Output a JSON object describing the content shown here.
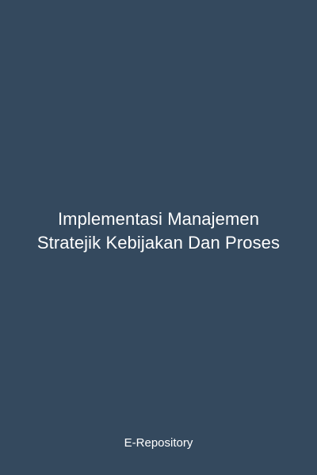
{
  "cover": {
    "background_color": "#34495e",
    "text_color": "#ffffff",
    "title_lines": [
      "Implementasi Manajemen",
      "Stratejik Kebijakan Dan Proses"
    ],
    "publisher": "E-Repository"
  }
}
